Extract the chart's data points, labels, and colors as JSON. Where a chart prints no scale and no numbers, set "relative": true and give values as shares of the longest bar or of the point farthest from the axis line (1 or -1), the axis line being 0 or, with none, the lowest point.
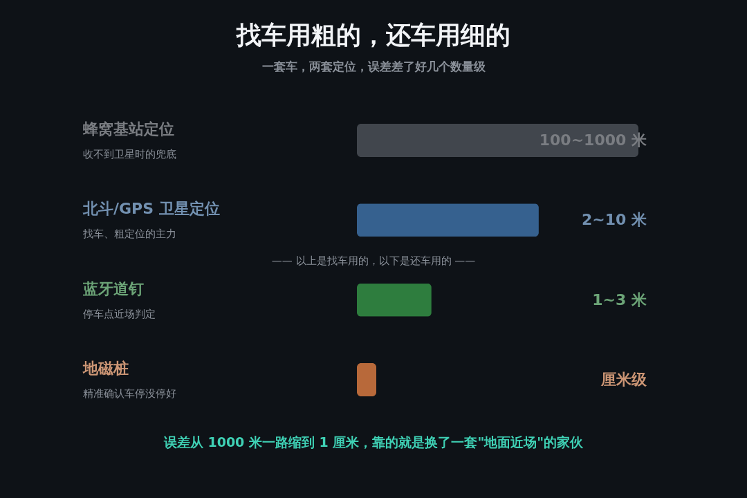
{
  "chart_data": {
    "type": "bar",
    "orientation": "horizontal",
    "relative": true,
    "title": "找车用粗的，还车用细的",
    "subtitle": "一套车，两套定位，误差差了好几个数量级",
    "categories": [
      "蜂窝基站定位",
      "北斗/GPS 卫星定位",
      "蓝牙道钉",
      "地磁桩"
    ],
    "values": [
      1,
      0.646,
      0.265,
      0.069
    ],
    "colors": [
      "#41464d",
      "#36618f",
      "#2e7d3e",
      "#b8693a"
    ],
    "annotations": [
      "收不到卫星时的兜底",
      "找车、粗定位的主力",
      "停车点近场判定",
      "精准确认车停没停好",
      "100~1000 米",
      "2~10 米",
      "1~3 米",
      "厘米级",
      "—— 以上是找车用的，以下是还车用的 ——",
      "误差从 1000 米一路缩到 1 厘米，靠的就是换了一套\"地面近场\"的家伙"
    ],
    "grid": false,
    "legend": false
  }
}
